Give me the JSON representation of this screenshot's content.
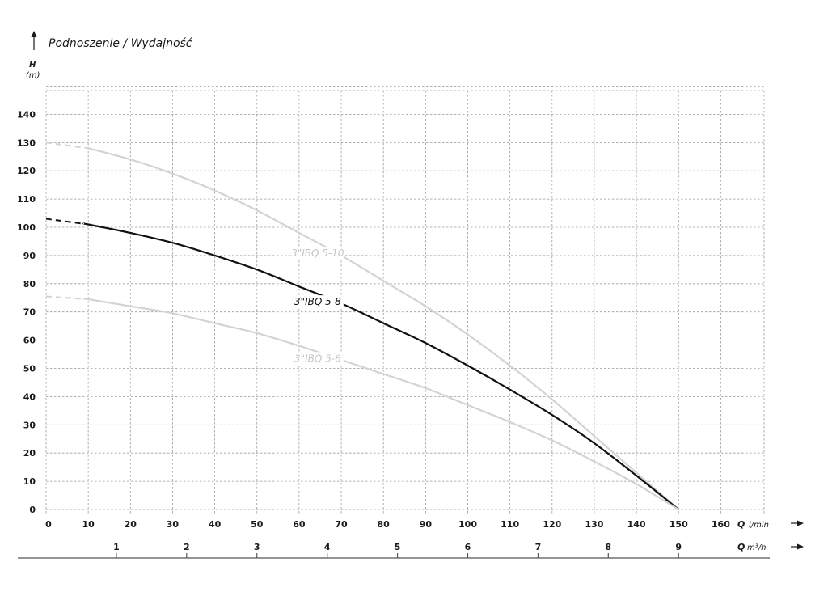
{
  "chart_data": {
    "type": "line",
    "title": "Podnoszenie / Wydajność",
    "ylabel": "H",
    "yunit": "(m)",
    "xlabel": "Q",
    "xunit": "l/min",
    "x2label": "Q",
    "x2unit": "m³/h",
    "xlim": [
      0,
      170
    ],
    "ylim": [
      0,
      150
    ],
    "yticks": [
      0,
      10,
      20,
      30,
      40,
      50,
      60,
      70,
      80,
      90,
      100,
      110,
      120,
      130,
      140
    ],
    "xticks": [
      0,
      10,
      20,
      30,
      40,
      50,
      60,
      70,
      80,
      90,
      100,
      110,
      120,
      130,
      140,
      150,
      160
    ],
    "x2ticks": [
      {
        "label": "1",
        "at_lmin": 16.67
      },
      {
        "label": "2",
        "at_lmin": 33.33
      },
      {
        "label": "3",
        "at_lmin": 50
      },
      {
        "label": "4",
        "at_lmin": 66.67
      },
      {
        "label": "5",
        "at_lmin": 83.33
      },
      {
        "label": "6",
        "at_lmin": 100
      },
      {
        "label": "7",
        "at_lmin": 116.67
      },
      {
        "label": "8",
        "at_lmin": 133.33
      },
      {
        "label": "9",
        "at_lmin": 150
      }
    ],
    "grid": true,
    "series": [
      {
        "name": "3\"IBQ 5-10",
        "color": "#d3d3d3",
        "dashed_until": 10,
        "x": [
          0,
          10,
          20,
          30,
          40,
          50,
          60,
          70,
          80,
          90,
          100,
          110,
          120,
          130,
          140,
          150
        ],
        "y": [
          130,
          128,
          124,
          119,
          113,
          106,
          98,
          90,
          81,
          72,
          62,
          51,
          39,
          26,
          13,
          0
        ],
        "label_at": 69
      },
      {
        "name": "3\"IBQ 5-8",
        "color": "#111111",
        "dashed_until": 9,
        "x": [
          0,
          10,
          20,
          30,
          40,
          50,
          60,
          70,
          80,
          90,
          100,
          110,
          120,
          130,
          140,
          150
        ],
        "y": [
          103,
          101,
          98,
          94.5,
          90,
          85,
          79,
          73,
          66,
          59,
          51,
          42.5,
          33.5,
          23.5,
          12,
          0
        ],
        "label_at": 69
      },
      {
        "name": "3\"IBQ 5-6",
        "color": "#d3d3d3",
        "dashed_until": 9,
        "x": [
          0,
          10,
          20,
          30,
          40,
          50,
          60,
          70,
          80,
          90,
          100,
          110,
          120,
          130,
          140,
          150
        ],
        "y": [
          75.5,
          74.5,
          72,
          69.5,
          66,
          62.5,
          58,
          53,
          48,
          43,
          37,
          31,
          24.5,
          17,
          9,
          0
        ],
        "label_at": 69
      }
    ]
  }
}
